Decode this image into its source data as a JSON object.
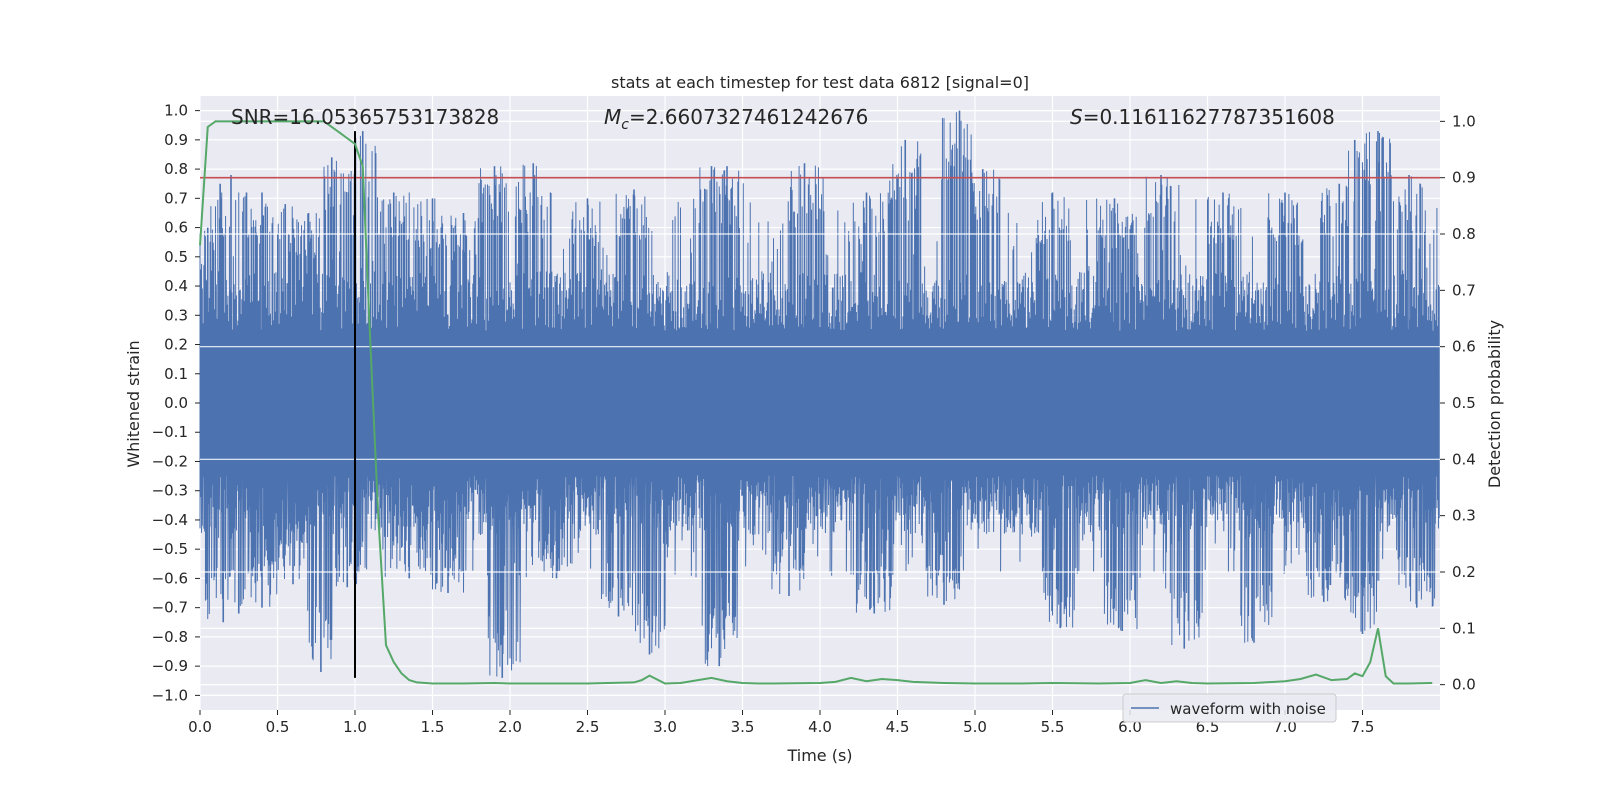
{
  "chart_data": {
    "type": "line",
    "title": "stats at each timestep for test data 6812 [signal=0]",
    "xlabel": "Time (s)",
    "ylabel": "Whitened strain",
    "y2label": "Detection probability",
    "xlim": [
      0.0,
      8.0
    ],
    "ylim": [
      -1.05,
      1.05
    ],
    "y2lim": [
      -0.045,
      1.045
    ],
    "xticks": [
      "0.0",
      "0.5",
      "1.0",
      "1.5",
      "2.0",
      "2.5",
      "3.0",
      "3.5",
      "4.0",
      "4.5",
      "5.0",
      "5.5",
      "6.0",
      "6.5",
      "7.0",
      "7.5"
    ],
    "yticks": [
      "1.0",
      "0.9",
      "0.8",
      "0.7",
      "0.6",
      "0.5",
      "0.4",
      "0.3",
      "0.2",
      "0.1",
      "0.0",
      "−0.1",
      "−0.2",
      "−0.3",
      "−0.4",
      "−0.5",
      "−0.6",
      "−0.7",
      "−0.8",
      "−0.9",
      "−1.0"
    ],
    "y2ticks": [
      "1.0",
      "0.9",
      "0.8",
      "0.7",
      "0.6",
      "0.5",
      "0.4",
      "0.3",
      "0.2",
      "0.1",
      "0.0"
    ],
    "annotations": {
      "snr": "SNR=16.05365753173828",
      "mc_symbol": "M",
      "mc_sub": "c",
      "mc_value": "=2.6607327461242676",
      "s_symbol": "S",
      "s_value": "=0.11611627787351608"
    },
    "legend": {
      "label": "waveform with noise",
      "position": "lower-right"
    },
    "grid": true,
    "colors": {
      "waveform": "#4c72b0",
      "probability": "#55a868",
      "threshold": "#c44e52",
      "marker": "#000000",
      "background": "#eaeaf2"
    },
    "series": [
      {
        "name": "waveform with noise",
        "axis": "left",
        "noise_envelope": {
          "typical_max": 0.45,
          "typical_min": -0.45
        },
        "peaks": [
          {
            "x": 0.05,
            "y": 0.6
          },
          {
            "x": 0.13,
            "y": 0.75
          },
          {
            "x": 0.2,
            "y": 0.78
          },
          {
            "x": 0.3,
            "y": 0.72
          },
          {
            "x": 0.4,
            "y": 0.72
          },
          {
            "x": 0.55,
            "y": 0.68
          },
          {
            "x": 0.7,
            "y": 0.65
          },
          {
            "x": 0.85,
            "y": 0.84
          },
          {
            "x": 1.05,
            "y": 0.93
          },
          {
            "x": 1.25,
            "y": 0.72
          },
          {
            "x": 1.5,
            "y": 0.7
          },
          {
            "x": 1.7,
            "y": 0.65
          },
          {
            "x": 1.9,
            "y": 0.81
          },
          {
            "x": 2.15,
            "y": 0.82
          },
          {
            "x": 2.5,
            "y": 0.7
          },
          {
            "x": 2.8,
            "y": 0.73
          },
          {
            "x": 3.3,
            "y": 0.81
          },
          {
            "x": 3.4,
            "y": 0.81
          },
          {
            "x": 3.9,
            "y": 0.82
          },
          {
            "x": 4.3,
            "y": 0.72
          },
          {
            "x": 4.55,
            "y": 0.9
          },
          {
            "x": 4.9,
            "y": 1.0
          },
          {
            "x": 5.05,
            "y": 0.8
          },
          {
            "x": 5.5,
            "y": 0.72
          },
          {
            "x": 5.9,
            "y": 0.7
          },
          {
            "x": 6.2,
            "y": 0.78
          },
          {
            "x": 6.6,
            "y": 0.72
          },
          {
            "x": 7.0,
            "y": 0.72
          },
          {
            "x": 7.35,
            "y": 0.75
          },
          {
            "x": 7.45,
            "y": 0.9
          },
          {
            "x": 7.6,
            "y": 0.93
          },
          {
            "x": 7.8,
            "y": 0.78
          }
        ],
        "troughs": [
          {
            "x": 0.15,
            "y": -0.75
          },
          {
            "x": 0.25,
            "y": -0.72
          },
          {
            "x": 0.4,
            "y": -0.7
          },
          {
            "x": 0.6,
            "y": -0.62
          },
          {
            "x": 0.78,
            "y": -0.92
          },
          {
            "x": 0.95,
            "y": -0.63
          },
          {
            "x": 1.35,
            "y": -0.6
          },
          {
            "x": 1.6,
            "y": -0.65
          },
          {
            "x": 1.95,
            "y": -0.94
          },
          {
            "x": 2.3,
            "y": -0.6
          },
          {
            "x": 2.7,
            "y": -0.73
          },
          {
            "x": 2.9,
            "y": -0.86
          },
          {
            "x": 3.35,
            "y": -0.9
          },
          {
            "x": 3.8,
            "y": -0.66
          },
          {
            "x": 4.35,
            "y": -0.72
          },
          {
            "x": 4.8,
            "y": -0.69
          },
          {
            "x": 5.55,
            "y": -0.77
          },
          {
            "x": 5.95,
            "y": -0.78
          },
          {
            "x": 6.35,
            "y": -0.84
          },
          {
            "x": 6.8,
            "y": -0.82
          },
          {
            "x": 7.25,
            "y": -0.68
          },
          {
            "x": 7.5,
            "y": -0.79
          },
          {
            "x": 7.85,
            "y": -0.7
          }
        ]
      },
      {
        "name": "detection probability",
        "axis": "right",
        "x": [
          0.0,
          0.05,
          0.1,
          0.2,
          0.4,
          0.6,
          0.8,
          0.85,
          0.9,
          0.95,
          1.0,
          1.05,
          1.1,
          1.15,
          1.2,
          1.25,
          1.3,
          1.35,
          1.4,
          1.5,
          1.7,
          1.9,
          2.0,
          2.5,
          2.8,
          2.85,
          2.9,
          3.0,
          3.1,
          3.3,
          3.4,
          3.5,
          3.6,
          3.7,
          4.0,
          4.1,
          4.2,
          4.3,
          4.4,
          4.5,
          4.6,
          4.8,
          5.0,
          5.3,
          5.5,
          5.8,
          6.0,
          6.1,
          6.2,
          6.3,
          6.4,
          6.5,
          6.8,
          7.0,
          7.1,
          7.2,
          7.3,
          7.4,
          7.45,
          7.5,
          7.55,
          7.6,
          7.65,
          7.7,
          7.8,
          7.95
        ],
        "values": [
          0.78,
          0.99,
          1.0,
          1.0,
          1.0,
          1.0,
          1.0,
          0.99,
          0.98,
          0.97,
          0.96,
          0.92,
          0.6,
          0.3,
          0.07,
          0.04,
          0.02,
          0.008,
          0.004,
          0.002,
          0.002,
          0.003,
          0.002,
          0.002,
          0.004,
          0.008,
          0.016,
          0.002,
          0.003,
          0.012,
          0.006,
          0.003,
          0.002,
          0.002,
          0.003,
          0.005,
          0.012,
          0.006,
          0.01,
          0.008,
          0.005,
          0.003,
          0.002,
          0.002,
          0.003,
          0.002,
          0.003,
          0.008,
          0.003,
          0.006,
          0.003,
          0.002,
          0.003,
          0.006,
          0.01,
          0.018,
          0.008,
          0.01,
          0.02,
          0.015,
          0.04,
          0.1,
          0.015,
          0.002,
          0.002,
          0.003
        ]
      }
    ],
    "reference_lines": [
      {
        "type": "horizontal",
        "axis": "right",
        "value": 0.9,
        "color": "threshold"
      },
      {
        "type": "vertical",
        "axis": "left",
        "x": 1.0,
        "y_from": -0.94,
        "y_to": 0.93,
        "color": "marker"
      }
    ]
  }
}
